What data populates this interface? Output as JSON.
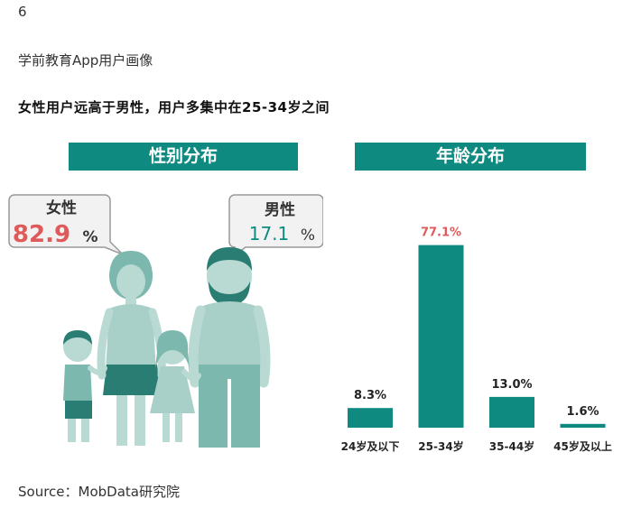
{
  "page": {
    "number": "6",
    "section_title": "学前教育App用户画像",
    "headline": "女性用户远高于男性，用户多集中在25-34岁之间",
    "source": "Source：MobData研究院"
  },
  "gender": {
    "banner": "性别分布",
    "female": {
      "label": "女性",
      "value": "82.9",
      "unit": "%"
    },
    "male": {
      "label": "男性",
      "value": "17.1",
      "unit": "%"
    }
  },
  "age": {
    "banner": "年龄分布"
  },
  "colors": {
    "teal": "#0e8a80",
    "female_text": "#e05a5a",
    "highlight_label": "#e05a5a",
    "figure_light": "#a9cfc9",
    "figure_mid": "#7db8ae",
    "figure_dark": "#2a7d72"
  },
  "chart_data": {
    "type": "bar",
    "title": "年龄分布",
    "categories": [
      "24岁及以下",
      "25-34岁",
      "35-44岁",
      "45岁及以上"
    ],
    "values": [
      8.3,
      77.1,
      13.0,
      1.6
    ],
    "value_labels": [
      "8.3%",
      "77.1%",
      "13.0%",
      "1.6%"
    ],
    "highlight_index": 1,
    "ylim": [
      0,
      80
    ],
    "grid": false,
    "legend": "none"
  }
}
